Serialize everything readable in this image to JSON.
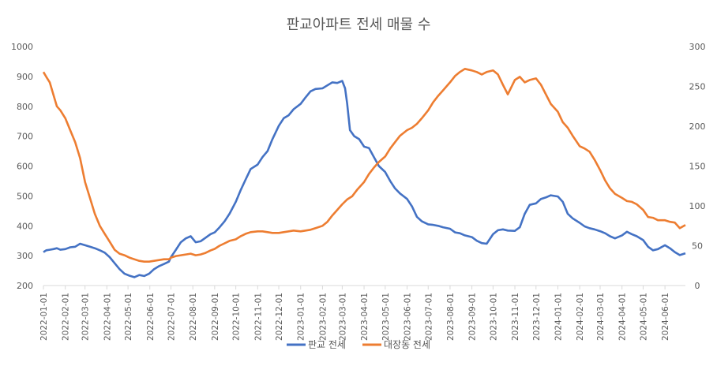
{
  "chart_data": {
    "type": "line",
    "title": "판교아파트 전세 매물 수",
    "xlabel": "",
    "ylabel": "",
    "left_axis": {
      "ylim": [
        200,
        1000
      ],
      "ticks": [
        "200",
        "300",
        "400",
        "500",
        "600",
        "700",
        "800",
        "900",
        "1000"
      ]
    },
    "right_axis": {
      "ylim": [
        0,
        300
      ],
      "ticks": [
        "0",
        "50",
        "100",
        "150",
        "200",
        "250",
        "300"
      ]
    },
    "x_ticks": [
      "2022-01-01",
      "2022-02-01",
      "2022-03-01",
      "2022-04-01",
      "2022-05-01",
      "2022-06-01",
      "2022-07-01",
      "2022-08-01",
      "2022-09-01",
      "2022-10-01",
      "2022-11-01",
      "2022-12-01",
      "2023-01-01",
      "2023-02-01",
      "2023-03-01",
      "2023-04-01",
      "2023-05-01",
      "2023-06-01",
      "2023-07-01",
      "2023-08-01",
      "2023-09-01",
      "2023-10-01",
      "2023-11-01",
      "2023-12-01",
      "2024-01-01",
      "2024-02-01",
      "2024-03-01",
      "2024-04-01",
      "2024-05-01",
      "2024-06-01"
    ],
    "x_range": [
      "2022-01-01",
      "2024-06-30"
    ],
    "grid": false,
    "legend_position": "bottom",
    "series": [
      {
        "name": "판교 전세",
        "axis": "left",
        "color": "#4472C4",
        "points": [
          [
            "2022-01-01",
            312
          ],
          [
            "2022-01-05",
            318
          ],
          [
            "2022-01-10",
            320
          ],
          [
            "2022-01-15",
            322
          ],
          [
            "2022-01-20",
            325
          ],
          [
            "2022-01-25",
            320
          ],
          [
            "2022-02-01",
            322
          ],
          [
            "2022-02-08",
            328
          ],
          [
            "2022-02-15",
            330
          ],
          [
            "2022-02-22",
            340
          ],
          [
            "2022-03-01",
            335
          ],
          [
            "2022-03-08",
            330
          ],
          [
            "2022-03-15",
            325
          ],
          [
            "2022-03-22",
            318
          ],
          [
            "2022-03-29",
            310
          ],
          [
            "2022-04-05",
            295
          ],
          [
            "2022-04-12",
            275
          ],
          [
            "2022-04-19",
            255
          ],
          [
            "2022-04-26",
            240
          ],
          [
            "2022-05-03",
            233
          ],
          [
            "2022-05-10",
            228
          ],
          [
            "2022-05-17",
            235
          ],
          [
            "2022-05-24",
            232
          ],
          [
            "2022-05-31",
            240
          ],
          [
            "2022-06-07",
            255
          ],
          [
            "2022-06-14",
            265
          ],
          [
            "2022-06-21",
            272
          ],
          [
            "2022-06-28",
            280
          ],
          [
            "2022-07-01",
            295
          ],
          [
            "2022-07-08",
            320
          ],
          [
            "2022-07-15",
            345
          ],
          [
            "2022-07-22",
            358
          ],
          [
            "2022-07-29",
            365
          ],
          [
            "2022-08-05",
            345
          ],
          [
            "2022-08-12",
            348
          ],
          [
            "2022-08-19",
            360
          ],
          [
            "2022-08-26",
            372
          ],
          [
            "2022-09-01",
            378
          ],
          [
            "2022-09-08",
            395
          ],
          [
            "2022-09-15",
            415
          ],
          [
            "2022-09-22",
            440
          ],
          [
            "2022-10-01",
            480
          ],
          [
            "2022-10-08",
            520
          ],
          [
            "2022-10-15",
            555
          ],
          [
            "2022-10-22",
            590
          ],
          [
            "2022-11-01",
            605
          ],
          [
            "2022-11-08",
            630
          ],
          [
            "2022-11-15",
            650
          ],
          [
            "2022-11-22",
            690
          ],
          [
            "2022-12-01",
            735
          ],
          [
            "2022-12-08",
            760
          ],
          [
            "2022-12-15",
            770
          ],
          [
            "2022-12-22",
            790
          ],
          [
            "2023-01-01",
            808
          ],
          [
            "2023-01-08",
            830
          ],
          [
            "2023-01-15",
            850
          ],
          [
            "2023-01-22",
            858
          ],
          [
            "2023-02-01",
            860
          ],
          [
            "2023-02-08",
            870
          ],
          [
            "2023-02-15",
            880
          ],
          [
            "2023-02-22",
            878
          ],
          [
            "2023-03-01",
            885
          ],
          [
            "2023-03-05",
            860
          ],
          [
            "2023-03-08",
            810
          ],
          [
            "2023-03-12",
            720
          ],
          [
            "2023-03-18",
            700
          ],
          [
            "2023-03-25",
            690
          ],
          [
            "2023-04-01",
            665
          ],
          [
            "2023-04-08",
            660
          ],
          [
            "2023-04-15",
            630
          ],
          [
            "2023-04-22",
            600
          ],
          [
            "2023-05-01",
            580
          ],
          [
            "2023-05-08",
            550
          ],
          [
            "2023-05-15",
            525
          ],
          [
            "2023-05-22",
            508
          ],
          [
            "2023-06-01",
            490
          ],
          [
            "2023-06-08",
            465
          ],
          [
            "2023-06-15",
            430
          ],
          [
            "2023-06-22",
            415
          ],
          [
            "2023-07-01",
            405
          ],
          [
            "2023-07-08",
            403
          ],
          [
            "2023-07-15",
            400
          ],
          [
            "2023-07-22",
            395
          ],
          [
            "2023-08-01",
            390
          ],
          [
            "2023-08-08",
            378
          ],
          [
            "2023-08-15",
            375
          ],
          [
            "2023-08-22",
            368
          ],
          [
            "2023-09-01",
            362
          ],
          [
            "2023-09-08",
            350
          ],
          [
            "2023-09-15",
            342
          ],
          [
            "2023-09-22",
            340
          ],
          [
            "2023-10-01",
            372
          ],
          [
            "2023-10-08",
            385
          ],
          [
            "2023-10-15",
            388
          ],
          [
            "2023-10-22",
            384
          ],
          [
            "2023-11-01",
            383
          ],
          [
            "2023-11-08",
            395
          ],
          [
            "2023-11-15",
            440
          ],
          [
            "2023-11-22",
            470
          ],
          [
            "2023-12-01",
            475
          ],
          [
            "2023-12-08",
            490
          ],
          [
            "2023-12-15",
            495
          ],
          [
            "2023-12-22",
            502
          ],
          [
            "2024-01-01",
            498
          ],
          [
            "2024-01-08",
            480
          ],
          [
            "2024-01-15",
            440
          ],
          [
            "2024-01-22",
            425
          ],
          [
            "2024-02-01",
            410
          ],
          [
            "2024-02-08",
            398
          ],
          [
            "2024-02-15",
            392
          ],
          [
            "2024-02-22",
            388
          ],
          [
            "2024-03-01",
            382
          ],
          [
            "2024-03-08",
            375
          ],
          [
            "2024-03-15",
            365
          ],
          [
            "2024-03-22",
            358
          ],
          [
            "2024-04-01",
            368
          ],
          [
            "2024-04-08",
            380
          ],
          [
            "2024-04-15",
            372
          ],
          [
            "2024-04-22",
            365
          ],
          [
            "2024-05-01",
            352
          ],
          [
            "2024-05-08",
            330
          ],
          [
            "2024-05-15",
            318
          ],
          [
            "2024-05-22",
            322
          ],
          [
            "2024-06-01",
            335
          ],
          [
            "2024-06-08",
            325
          ],
          [
            "2024-06-15",
            312
          ],
          [
            "2024-06-22",
            302
          ],
          [
            "2024-06-30",
            308
          ]
        ]
      },
      {
        "name": "대장동 전세",
        "axis": "right",
        "color": "#ED7D31",
        "points": [
          [
            "2022-01-01",
            268
          ],
          [
            "2022-01-05",
            262
          ],
          [
            "2022-01-10",
            255
          ],
          [
            "2022-01-15",
            240
          ],
          [
            "2022-01-20",
            225
          ],
          [
            "2022-01-25",
            220
          ],
          [
            "2022-02-01",
            210
          ],
          [
            "2022-02-08",
            195
          ],
          [
            "2022-02-15",
            180
          ],
          [
            "2022-02-22",
            160
          ],
          [
            "2022-03-01",
            130
          ],
          [
            "2022-03-08",
            110
          ],
          [
            "2022-03-15",
            90
          ],
          [
            "2022-03-22",
            75
          ],
          [
            "2022-03-29",
            65
          ],
          [
            "2022-04-05",
            55
          ],
          [
            "2022-04-12",
            45
          ],
          [
            "2022-04-19",
            40
          ],
          [
            "2022-04-26",
            38
          ],
          [
            "2022-05-03",
            35
          ],
          [
            "2022-05-10",
            33
          ],
          [
            "2022-05-17",
            31
          ],
          [
            "2022-05-24",
            30
          ],
          [
            "2022-05-31",
            30
          ],
          [
            "2022-06-07",
            31
          ],
          [
            "2022-06-14",
            32
          ],
          [
            "2022-06-21",
            33
          ],
          [
            "2022-06-28",
            33
          ],
          [
            "2022-07-01",
            35
          ],
          [
            "2022-07-08",
            37
          ],
          [
            "2022-07-15",
            38
          ],
          [
            "2022-07-22",
            39
          ],
          [
            "2022-07-29",
            40
          ],
          [
            "2022-08-05",
            38
          ],
          [
            "2022-08-12",
            39
          ],
          [
            "2022-08-19",
            41
          ],
          [
            "2022-08-26",
            44
          ],
          [
            "2022-09-01",
            46
          ],
          [
            "2022-09-08",
            50
          ],
          [
            "2022-09-15",
            53
          ],
          [
            "2022-09-22",
            56
          ],
          [
            "2022-10-01",
            58
          ],
          [
            "2022-10-08",
            62
          ],
          [
            "2022-10-15",
            65
          ],
          [
            "2022-10-22",
            67
          ],
          [
            "2022-11-01",
            68
          ],
          [
            "2022-11-08",
            68
          ],
          [
            "2022-11-15",
            67
          ],
          [
            "2022-11-22",
            66
          ],
          [
            "2022-12-01",
            66
          ],
          [
            "2022-12-08",
            67
          ],
          [
            "2022-12-15",
            68
          ],
          [
            "2022-12-22",
            69
          ],
          [
            "2023-01-01",
            68
          ],
          [
            "2023-01-08",
            69
          ],
          [
            "2023-01-15",
            70
          ],
          [
            "2023-01-22",
            72
          ],
          [
            "2023-02-01",
            75
          ],
          [
            "2023-02-08",
            80
          ],
          [
            "2023-02-15",
            88
          ],
          [
            "2023-02-22",
            95
          ],
          [
            "2023-03-01",
            102
          ],
          [
            "2023-03-08",
            108
          ],
          [
            "2023-03-15",
            112
          ],
          [
            "2023-03-22",
            120
          ],
          [
            "2023-04-01",
            130
          ],
          [
            "2023-04-08",
            140
          ],
          [
            "2023-04-15",
            148
          ],
          [
            "2023-04-22",
            155
          ],
          [
            "2023-05-01",
            162
          ],
          [
            "2023-05-08",
            172
          ],
          [
            "2023-05-15",
            180
          ],
          [
            "2023-05-22",
            188
          ],
          [
            "2023-06-01",
            195
          ],
          [
            "2023-06-08",
            198
          ],
          [
            "2023-06-15",
            203
          ],
          [
            "2023-06-22",
            210
          ],
          [
            "2023-07-01",
            220
          ],
          [
            "2023-07-08",
            230
          ],
          [
            "2023-07-15",
            238
          ],
          [
            "2023-07-22",
            245
          ],
          [
            "2023-08-01",
            255
          ],
          [
            "2023-08-08",
            263
          ],
          [
            "2023-08-15",
            268
          ],
          [
            "2023-08-22",
            272
          ],
          [
            "2023-09-01",
            270
          ],
          [
            "2023-09-08",
            268
          ],
          [
            "2023-09-15",
            265
          ],
          [
            "2023-09-22",
            268
          ],
          [
            "2023-10-01",
            270
          ],
          [
            "2023-10-08",
            265
          ],
          [
            "2023-10-15",
            252
          ],
          [
            "2023-10-22",
            240
          ],
          [
            "2023-11-01",
            258
          ],
          [
            "2023-11-08",
            262
          ],
          [
            "2023-11-15",
            255
          ],
          [
            "2023-11-22",
            258
          ],
          [
            "2023-12-01",
            260
          ],
          [
            "2023-12-08",
            252
          ],
          [
            "2023-12-15",
            240
          ],
          [
            "2023-12-22",
            228
          ],
          [
            "2024-01-01",
            218
          ],
          [
            "2024-01-08",
            205
          ],
          [
            "2024-01-15",
            198
          ],
          [
            "2024-01-22",
            188
          ],
          [
            "2024-02-01",
            175
          ],
          [
            "2024-02-08",
            172
          ],
          [
            "2024-02-15",
            168
          ],
          [
            "2024-02-22",
            158
          ],
          [
            "2024-03-01",
            145
          ],
          [
            "2024-03-08",
            132
          ],
          [
            "2024-03-15",
            122
          ],
          [
            "2024-03-22",
            115
          ],
          [
            "2024-04-01",
            110
          ],
          [
            "2024-04-08",
            106
          ],
          [
            "2024-04-15",
            105
          ],
          [
            "2024-04-22",
            102
          ],
          [
            "2024-05-01",
            95
          ],
          [
            "2024-05-08",
            86
          ],
          [
            "2024-05-15",
            85
          ],
          [
            "2024-05-22",
            82
          ],
          [
            "2024-06-01",
            82
          ],
          [
            "2024-06-08",
            80
          ],
          [
            "2024-06-15",
            79
          ],
          [
            "2024-06-22",
            72
          ],
          [
            "2024-06-30",
            76
          ]
        ]
      }
    ]
  }
}
